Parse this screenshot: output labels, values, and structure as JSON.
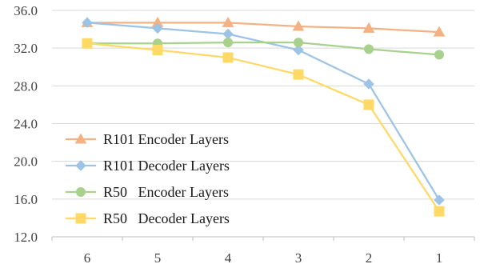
{
  "chart_data": {
    "type": "line",
    "categories": [
      "6",
      "5",
      "4",
      "3",
      "2",
      "1"
    ],
    "ylim": [
      12.0,
      36.0
    ],
    "y_ticks": [
      "12.0",
      "16.0",
      "20.0",
      "24.0",
      "28.0",
      "32.0",
      "36.0"
    ],
    "y_tick_values": [
      12,
      16,
      20,
      24,
      28,
      32,
      36
    ],
    "grid": true,
    "legend_position": "lower-left",
    "series": [
      {
        "name": "R101 Encoder Layers",
        "color": "#F4B183",
        "marker": "triangle",
        "values": [
          34.7,
          34.7,
          34.7,
          34.3,
          34.1,
          33.7
        ]
      },
      {
        "name": "R101 Decoder Layers",
        "color": "#9DC3E6",
        "marker": "diamond",
        "values": [
          34.7,
          34.1,
          33.5,
          31.8,
          28.2,
          15.9
        ]
      },
      {
        "name": "R50   Encoder Layers",
        "color": "#A9D18E",
        "marker": "circle",
        "values": [
          32.5,
          32.5,
          32.6,
          32.6,
          31.9,
          31.3
        ]
      },
      {
        "name": "R50   Decoder Layers",
        "color": "#FFD966",
        "marker": "square",
        "values": [
          32.5,
          31.8,
          31.0,
          29.2,
          26.0,
          14.7
        ]
      }
    ]
  }
}
